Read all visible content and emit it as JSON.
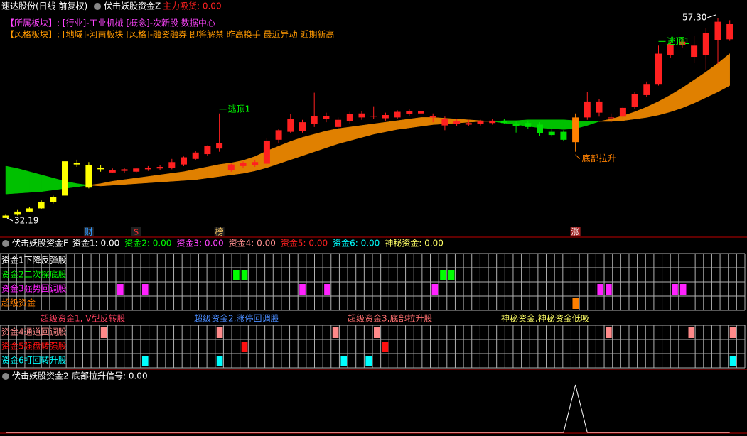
{
  "header": {
    "stock": "速达股份(日线 前复权)",
    "indicator": "伏击妖股资金Z",
    "readout": "主力吸货: 0.00",
    "sector_line": "【所属板块】: [行业]-工业机械 [概念]-次新股 数据中心",
    "style_line": "【风格板块】: [地域]-河南板块 [风格]-融资融券 即将解禁 昨高换手 最近异动 近期新高"
  },
  "chart_data": [
    {
      "type": "candlestick",
      "open": [
        32.2,
        32.6,
        33.0,
        33.4,
        34.2,
        35.0,
        39.1,
        38.8,
        38.3,
        37.9,
        38.1,
        38.0,
        38.3,
        38.4,
        38.5,
        38.9,
        39.6,
        40.2,
        40.9,
        38.2,
        38.7,
        38.8,
        39.0,
        42.0,
        43.0,
        43.1,
        44.0,
        44.6,
        43.6,
        44.3,
        44.8,
        44.9,
        44.7,
        44.8,
        45.2,
        45.3,
        44.8,
        43.8,
        44.0,
        43.9,
        44.0,
        44.1,
        44.3,
        44.0,
        44.1,
        43.9,
        43.0,
        43.0,
        41.7,
        44.8,
        46.8,
        44.8,
        44.9,
        46.1,
        47.6,
        49.0,
        52.6,
        53.9,
        53.8,
        52.6,
        54.5,
        56.5
      ],
      "high": [
        32.6,
        33.2,
        33.6,
        34.4,
        35.0,
        39.8,
        39.5,
        39.2,
        38.8,
        38.4,
        38.5,
        38.5,
        38.7,
        38.8,
        39.6,
        39.9,
        40.6,
        41.3,
        45.3,
        39.0,
        39.3,
        39.5,
        42.2,
        43.4,
        45.2,
        44.5,
        47.9,
        45.4,
        44.8,
        45.5,
        45.6,
        46.2,
        45.4,
        45.7,
        45.9,
        45.9,
        45.3,
        44.9,
        44.6,
        44.5,
        44.5,
        44.6,
        44.6,
        44.3,
        44.4,
        44.2,
        43.3,
        43.2,
        45.3,
        48.0,
        47.1,
        45.3,
        46.2,
        48.0,
        49.3,
        53.8,
        54.3,
        54.8,
        55.0,
        56.0,
        57.3,
        57.0
      ],
      "low": [
        32.19,
        32.5,
        32.9,
        33.3,
        34.0,
        34.9,
        38.6,
        35.9,
        38.0,
        37.8,
        37.9,
        37.9,
        38.1,
        38.2,
        38.3,
        38.7,
        39.4,
        40.0,
        40.5,
        38.0,
        38.5,
        38.6,
        38.9,
        41.6,
        42.8,
        42.9,
        43.6,
        44.2,
        43.4,
        44.0,
        44.5,
        44.6,
        44.4,
        44.6,
        45.0,
        45.1,
        44.2,
        43.2,
        43.7,
        43.7,
        43.8,
        43.9,
        44.0,
        42.9,
        43.4,
        42.5,
        42.4,
        41.8,
        40.5,
        44.5,
        44.9,
        44.2,
        44.6,
        45.9,
        47.4,
        48.8,
        52.3,
        53.5,
        51.6,
        50.8,
        51.5,
        54.4
      ],
      "close": [
        32.5,
        33.0,
        33.4,
        34.2,
        34.8,
        39.3,
        38.9,
        36.0,
        38.5,
        38.2,
        38.3,
        38.4,
        38.5,
        38.6,
        39.2,
        39.8,
        40.4,
        41.2,
        41.6,
        38.9,
        39.1,
        39.2,
        41.9,
        43.2,
        44.6,
        44.2,
        45.0,
        45.0,
        44.5,
        45.2,
        45.3,
        45.0,
        45.1,
        45.5,
        45.6,
        45.6,
        45.0,
        44.6,
        44.3,
        44.1,
        44.3,
        44.4,
        44.1,
        43.7,
        43.6,
        42.8,
        42.6,
        42.0,
        44.8,
        46.8,
        45.4,
        44.7,
        46.0,
        47.7,
        49.0,
        52.8,
        54.0,
        54.3,
        52.4,
        55.4,
        56.8,
        54.6
      ],
      "colors": [
        "#ffff00",
        "#ffff00",
        "#ffff00",
        "#ffff00",
        "#ffff00",
        "#ffff00",
        "#ffff00",
        "#ffff00",
        "#ffff00",
        "#ff2020",
        "#ff2020",
        "#ff2020",
        "#ff2020",
        "#ff2020",
        "#ff2020",
        "#ff2020",
        "#ff2020",
        "#ff2020",
        "#ff2020",
        "#ff2020",
        "#ff2020",
        "#ff2020",
        "#ff2020",
        "#ff2020",
        "#ff2020",
        "#ff2020",
        "#ff2020",
        "#ff2020",
        "#ff2020",
        "#ff2020",
        "#ff2020",
        "#ff2020",
        "#ff2020",
        "#ff2020",
        "#ff2020",
        "#ff2020",
        "#ff2020",
        "#ff2020",
        "#ff2020",
        "#ff2020",
        "#ff2020",
        "#ff2020",
        "#00e000",
        "#00e000",
        "#00e000",
        "#00e000",
        "#00e000",
        "#00e000",
        "#ff8000",
        "#ff2020",
        "#ff2020",
        "#ff2020",
        "#ff2020",
        "#ff2020",
        "#ff2020",
        "#ff2020",
        "#ff2020",
        "#ff2020",
        "#ff2020",
        "#ff2020",
        "#ff2020",
        "#ff2020"
      ],
      "ribbon": {
        "up_color": "#e08000",
        "down_color": "#00c000",
        "fast": [
          35.2,
          35.3,
          35.4,
          35.5,
          35.7,
          35.9,
          36.1,
          36.3,
          36.5,
          36.8,
          37.0,
          37.2,
          37.4,
          37.6,
          37.8,
          38.0,
          38.3,
          38.6,
          38.9,
          39.1,
          39.4,
          39.9,
          40.6,
          41.2,
          41.8,
          42.3,
          42.7,
          43.1,
          43.4,
          43.6,
          43.8,
          44.0,
          44.2,
          44.4,
          44.6,
          44.8,
          44.8,
          44.7,
          44.6,
          44.5,
          44.4,
          44.3,
          44.1,
          43.9,
          43.7,
          43.5,
          43.4,
          43.3,
          43.4,
          43.8,
          44.3,
          44.6,
          45.0,
          45.5,
          46.1,
          46.8,
          47.6,
          48.5,
          49.5,
          50.5,
          51.6,
          52.8
        ],
        "slow": [
          38.7,
          38.4,
          38.0,
          37.6,
          37.2,
          36.8,
          36.5,
          36.3,
          36.2,
          36.3,
          36.4,
          36.5,
          36.6,
          36.7,
          36.8,
          36.9,
          37.0,
          37.2,
          37.4,
          37.6,
          37.8,
          38.1,
          38.5,
          39.0,
          39.5,
          40.0,
          40.5,
          41.0,
          41.5,
          41.9,
          42.3,
          42.7,
          43.0,
          43.3,
          43.5,
          43.7,
          43.9,
          44.0,
          44.1,
          44.2,
          44.3,
          44.3,
          44.4,
          44.4,
          44.5,
          44.5,
          44.5,
          44.5,
          44.4,
          44.3,
          44.3,
          44.3,
          44.4,
          44.6,
          44.8,
          45.1,
          45.5,
          46.0,
          46.6,
          47.3,
          48.0,
          48.8
        ]
      },
      "max_label": {
        "value": 57.3,
        "label": "57.30"
      },
      "min_label": {
        "value": 32.19,
        "label": "32.19"
      },
      "annotations": [
        {
          "text": "逃顶1",
          "candle": 18,
          "color": "#00ff00"
        },
        {
          "text": "逃顶1",
          "candle": 55,
          "color": "#00ff00"
        },
        {
          "text": "底部拉升",
          "candle": 48,
          "color": "#ff8000"
        }
      ],
      "markers": [
        {
          "text": "财",
          "candle": 7,
          "color": "#3399ff"
        },
        {
          "text": "$",
          "candle": 11,
          "color": "#ff3030"
        },
        {
          "text": "榜",
          "candle": 18,
          "color": "#ffcc66"
        },
        {
          "text": "涨",
          "candle": 48,
          "color": "#ffffff"
        }
      ]
    },
    {
      "type": "line",
      "title": "伏击妖股资金2",
      "readout": "底部拉升信号: 0.00",
      "color": "#ffffff",
      "values": [
        0,
        0,
        0,
        0,
        0,
        0,
        0,
        0,
        0,
        0,
        0,
        0,
        0,
        0,
        0,
        0,
        0,
        0,
        0,
        0,
        0,
        0,
        0,
        0,
        0,
        0,
        0,
        0,
        0,
        0,
        0,
        0,
        0,
        0,
        0,
        0,
        0,
        0,
        0,
        0,
        0,
        0,
        0,
        0,
        0,
        0,
        0,
        0,
        1,
        0,
        0,
        0,
        0,
        0,
        0,
        0,
        0,
        0,
        0,
        0,
        0,
        0
      ]
    }
  ],
  "signal_panel": {
    "title": "伏击妖股资金F",
    "readouts": [
      {
        "text": "资金1: 0.00",
        "color": "#ffffff"
      },
      {
        "text": "资金2: 0.00",
        "color": "#00ff00"
      },
      {
        "text": "资金3: 0.00",
        "color": "#ff44ff"
      },
      {
        "text": "资金4: 0.00",
        "color": "#ff9090"
      },
      {
        "text": "资金5: 0.00",
        "color": "#ff2020"
      },
      {
        "text": "资金6: 0.00",
        "color": "#00ffff"
      },
      {
        "text": "神秘资金: 0.00",
        "color": "#ffff66"
      }
    ],
    "columns": 90,
    "rows_top": [
      {
        "label": "资金1下降反弹股",
        "color": "#ffffff",
        "cells": []
      },
      {
        "label": "资金2二次探底股",
        "color": "#00ff00",
        "cells": [
          28,
          29,
          53,
          54
        ]
      },
      {
        "label": "资金3强势回调股",
        "color": "#ff22ff",
        "cells": [
          14,
          17,
          36,
          39,
          52,
          72,
          73,
          81,
          82
        ]
      },
      {
        "label": "超级资金",
        "color": "#ff8000",
        "cells": [
          69
        ]
      }
    ],
    "captions": [
      {
        "text": "超级资金1, V型反转股",
        "color": "#ff4060"
      },
      {
        "text": "超级资金2,涨停回调股",
        "color": "#4a8cff"
      },
      {
        "text": "超级资金3,底部拉升股",
        "color": "#ff7070"
      },
      {
        "text": "神秘资金,神秘资金低吸",
        "color": "#ffff66"
      }
    ],
    "rows_bottom": [
      {
        "label": "资金4通道回调股",
        "color": "#ff8a8a",
        "cells": [
          12,
          26,
          40,
          45,
          73,
          83,
          88
        ]
      },
      {
        "label": "资金5强盘转强股",
        "color": "#ff1010",
        "cells": [
          29,
          46
        ]
      },
      {
        "label": "资金6打回转升股",
        "color": "#00ffff",
        "cells": [
          17,
          26,
          41,
          44,
          88
        ]
      }
    ]
  }
}
